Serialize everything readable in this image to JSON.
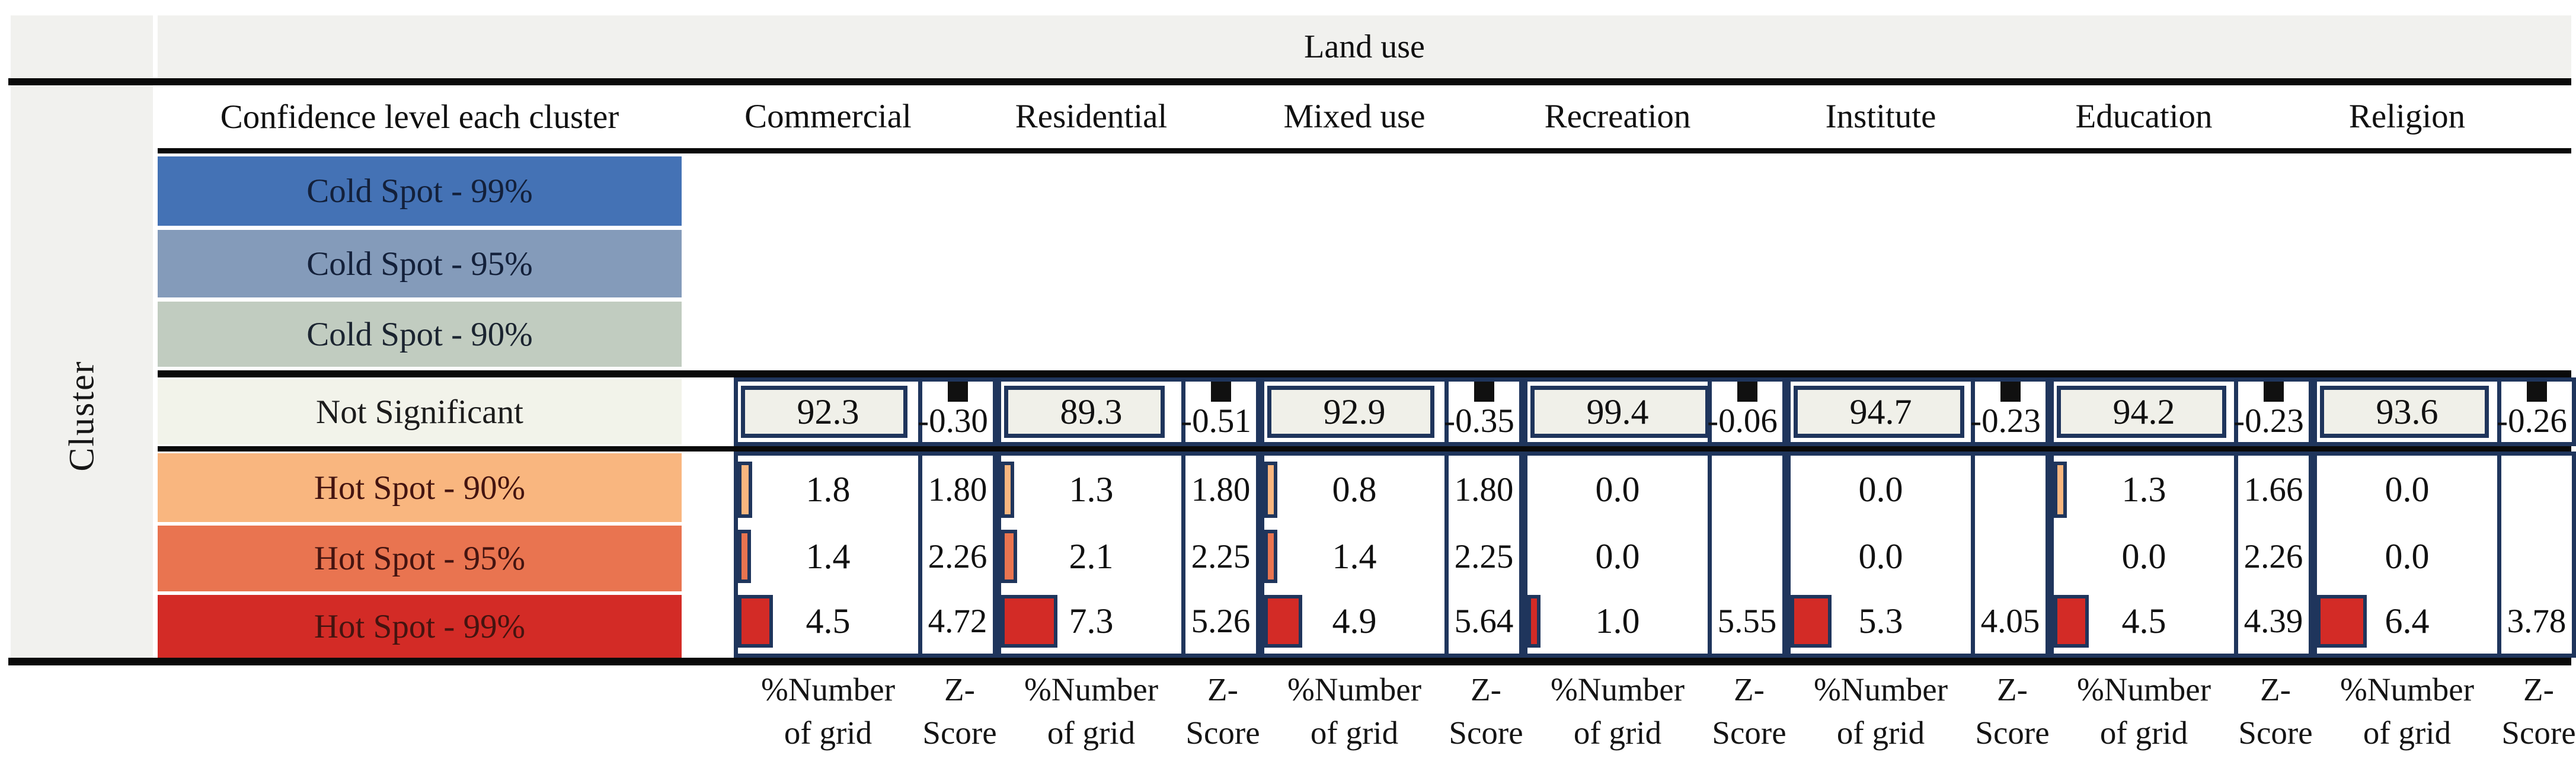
{
  "chart_data": {
    "type": "table",
    "title": "Land use",
    "row_axis_label": "Cluster",
    "row_header": "Confidence level each cluster",
    "legend_position": "left",
    "grid": false,
    "pct_axis_range": [
      0,
      100
    ],
    "rows": [
      {
        "key": "cold_99",
        "label": "Cold Spot - 99%",
        "color": "#4472b5",
        "text_color": "#13203a"
      },
      {
        "key": "cold_95",
        "label": "Cold Spot - 95%",
        "color": "#849bba",
        "text_color": "#13203a"
      },
      {
        "key": "cold_90",
        "label": "Cold Spot - 90%",
        "color": "#c1ccc0",
        "text_color": "#1b2430"
      },
      {
        "key": "not_significant",
        "label": "Not Significant",
        "color": "#f2f3ea",
        "text_color": "#1c1c1c"
      },
      {
        "key": "hot_90",
        "label": "Hot Spot - 90%",
        "color": "#f9b67f",
        "text_color": "#441410"
      },
      {
        "key": "hot_95",
        "label": "Hot Spot - 95%",
        "color": "#e97450",
        "text_color": "#441410"
      },
      {
        "key": "hot_99",
        "label": "Hot Spot - 99%",
        "color": "#d32b26",
        "text_color": "#441410"
      }
    ],
    "measures": {
      "pct": [
        "%Number",
        "of grid"
      ],
      "z": [
        "Z-",
        "Score"
      ]
    },
    "columns": [
      {
        "name": "Commercial",
        "not_significant": {
          "pct": "92.3",
          "z": "-0.30"
        },
        "hot_90": {
          "pct": "1.8",
          "z": "1.80"
        },
        "hot_95": {
          "pct": "1.4",
          "z": "2.26"
        },
        "hot_99": {
          "pct": "4.5",
          "z": "4.72"
        }
      },
      {
        "name": "Residential",
        "not_significant": {
          "pct": "89.3",
          "z": "-0.51"
        },
        "hot_90": {
          "pct": "1.3",
          "z": "1.80"
        },
        "hot_95": {
          "pct": "2.1",
          "z": "2.25"
        },
        "hot_99": {
          "pct": "7.3",
          "z": "5.26"
        }
      },
      {
        "name": "Mixed use",
        "not_significant": {
          "pct": "92.9",
          "z": "-0.35"
        },
        "hot_90": {
          "pct": "0.8",
          "z": "1.80"
        },
        "hot_95": {
          "pct": "1.4",
          "z": "2.25"
        },
        "hot_99": {
          "pct": "4.9",
          "z": "5.64"
        }
      },
      {
        "name": "Recreation",
        "not_significant": {
          "pct": "99.4",
          "z": "-0.06"
        },
        "hot_90": {
          "pct": "0.0",
          "z": ""
        },
        "hot_95": {
          "pct": "0.0",
          "z": ""
        },
        "hot_99": {
          "pct": "1.0",
          "z": "5.55"
        }
      },
      {
        "name": "Institute",
        "not_significant": {
          "pct": "94.7",
          "z": "-0.23"
        },
        "hot_90": {
          "pct": "0.0",
          "z": ""
        },
        "hot_95": {
          "pct": "0.0",
          "z": ""
        },
        "hot_99": {
          "pct": "5.3",
          "z": "4.05"
        }
      },
      {
        "name": "Education",
        "not_significant": {
          "pct": "94.2",
          "z": "-0.23"
        },
        "hot_90": {
          "pct": "1.3",
          "z": "1.66"
        },
        "hot_95": {
          "pct": "0.0",
          "z": "2.26"
        },
        "hot_99": {
          "pct": "4.5",
          "z": "4.39"
        }
      },
      {
        "name": "Religion",
        "not_significant": {
          "pct": "93.6",
          "z": "-0.26"
        },
        "hot_90": {
          "pct": "0.0",
          "z": ""
        },
        "hot_95": {
          "pct": "0.0",
          "z": ""
        },
        "hot_99": {
          "pct": "6.4",
          "z": "3.78"
        }
      }
    ],
    "style": {
      "box_border_color": "#1f355c",
      "rule_color": "#0a0a0a",
      "band_fill": "#f1f1ee",
      "not_significant_bar_fill": "#f0f0e9"
    }
  }
}
